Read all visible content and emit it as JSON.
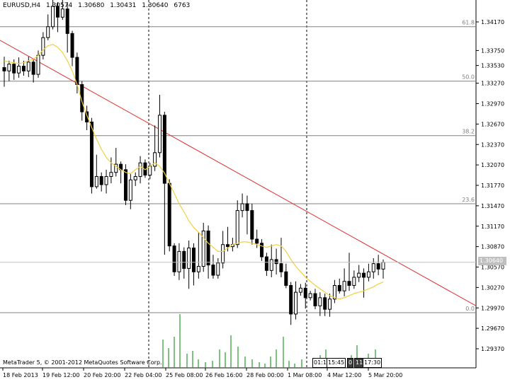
{
  "header": {
    "symbol": "EURUSD,H4",
    "open": "1.30574",
    "high": "1.30680",
    "low": "1.30431",
    "close": "1.30640",
    "volume": "6763"
  },
  "copyright": "MetaTrader 5, © 2001-2012 MetaQuotes Software Corp.",
  "current_price": "1.30640",
  "time_badges": [
    "01:1",
    "15:45",
    "0",
    "11:",
    "17:30"
  ],
  "colors": {
    "bull": "#ffffff",
    "bear": "#000000",
    "ma": "#f0d040",
    "trendline": "#e03030",
    "volume": "#2a9a2a",
    "fib": "#808080",
    "separator": "#000000"
  },
  "chart_data": {
    "type": "candlestick",
    "y_ticks": [
      "1.34170",
      "1.33750",
      "1.33530",
      "1.33270",
      "1.32970",
      "1.32670",
      "1.32370",
      "1.32070",
      "1.31770",
      "1.31470",
      "1.31170",
      "1.30870",
      "1.30570",
      "1.30270",
      "1.29970",
      "1.29670",
      "1.29370"
    ],
    "y_tick_values": [
      1.3417,
      1.3375,
      1.3353,
      1.3327,
      1.3297,
      1.3267,
      1.3237,
      1.3207,
      1.3177,
      1.3147,
      1.3117,
      1.3087,
      1.3057,
      1.3027,
      1.2997,
      1.2967,
      1.2937
    ],
    "x_ticks": [
      "18 Feb 2013",
      "19 Feb 12:00",
      "20 Feb 20:00",
      "22 Feb 04:00",
      "25 Feb 08:00",
      "26 Feb 16:00",
      "28 Feb 00:00",
      "1 Mar 08:00",
      "4 Mar 12:00",
      "5 Mar 20:00"
    ],
    "fib_levels": [
      {
        "label": "61.8",
        "price": 1.341
      },
      {
        "label": "50.0",
        "price": 1.333
      },
      {
        "label": "38.2",
        "price": 1.325
      },
      {
        "label": "23.6",
        "price": 1.315
      },
      {
        "label": "0.0",
        "price": 1.299
      }
    ],
    "trendline": {
      "from_price": 1.339,
      "to_price": 1.3
    },
    "session_separators": [
      "22 Feb 04:00",
      "1 Mar 08:00"
    ],
    "candles": [
      [
        1.335,
        1.3345,
        1.3366,
        1.3322
      ],
      [
        1.3345,
        1.3355,
        1.336,
        1.333
      ],
      [
        1.3355,
        1.3342,
        1.3362,
        1.3332
      ],
      [
        1.3342,
        1.3352,
        1.3365,
        1.3335
      ],
      [
        1.3352,
        1.3345,
        1.336,
        1.3338
      ],
      [
        1.3345,
        1.3358,
        1.3366,
        1.3336
      ],
      [
        1.3358,
        1.334,
        1.3362,
        1.3328
      ],
      [
        1.334,
        1.3368,
        1.3375,
        1.3335
      ],
      [
        1.3368,
        1.3394,
        1.3402,
        1.3362
      ],
      [
        1.3394,
        1.341,
        1.3428,
        1.339
      ],
      [
        1.341,
        1.344,
        1.3452,
        1.3406
      ],
      [
        1.344,
        1.3424,
        1.3446,
        1.3402
      ],
      [
        1.3424,
        1.3436,
        1.3452,
        1.342
      ],
      [
        1.3436,
        1.34,
        1.3446,
        1.3372
      ],
      [
        1.34,
        1.3365,
        1.3404,
        1.3352
      ],
      [
        1.3365,
        1.3325,
        1.3372,
        1.3312
      ],
      [
        1.3325,
        1.3285,
        1.333,
        1.3272
      ],
      [
        1.3285,
        1.327,
        1.3294,
        1.3258
      ],
      [
        1.327,
        1.3175,
        1.3276,
        1.3165
      ],
      [
        1.3175,
        1.319,
        1.3222,
        1.3172
      ],
      [
        1.319,
        1.3178,
        1.3196,
        1.3168
      ],
      [
        1.3178,
        1.319,
        1.32,
        1.3165
      ],
      [
        1.319,
        1.3196,
        1.3218,
        1.318
      ],
      [
        1.3196,
        1.3208,
        1.3232,
        1.319
      ],
      [
        1.3208,
        1.32,
        1.3212,
        1.318
      ],
      [
        1.32,
        1.3155,
        1.3208,
        1.3148
      ],
      [
        1.3155,
        1.3185,
        1.3195,
        1.3142
      ],
      [
        1.3185,
        1.319,
        1.3196,
        1.3176
      ],
      [
        1.319,
        1.321,
        1.322,
        1.318
      ],
      [
        1.321,
        1.3192,
        1.3215,
        1.3188
      ],
      [
        1.3192,
        1.3205,
        1.321,
        1.3186
      ],
      [
        1.3205,
        1.3225,
        1.3265,
        1.3198
      ],
      [
        1.3225,
        1.328,
        1.331,
        1.3218
      ],
      [
        1.328,
        1.318,
        1.3285,
        1.3075
      ],
      [
        1.318,
        1.3088,
        1.3186,
        1.308
      ],
      [
        1.3088,
        1.305,
        1.3092,
        1.3044
      ],
      [
        1.305,
        1.308,
        1.3092,
        1.3038
      ],
      [
        1.308,
        1.3055,
        1.3086,
        1.304
      ],
      [
        1.3055,
        1.3085,
        1.3096,
        1.3025
      ],
      [
        1.3085,
        1.305,
        1.3092,
        1.303
      ],
      [
        1.305,
        1.3058,
        1.3108,
        1.304
      ],
      [
        1.3058,
        1.311,
        1.3122,
        1.305
      ],
      [
        1.311,
        1.306,
        1.3118,
        1.304
      ],
      [
        1.306,
        1.3045,
        1.3075,
        1.304
      ],
      [
        1.3045,
        1.3063,
        1.307,
        1.304
      ],
      [
        1.3063,
        1.309,
        1.311,
        1.3055
      ],
      [
        1.309,
        1.3087,
        1.3116,
        1.308
      ],
      [
        1.3087,
        1.309,
        1.31,
        1.308
      ],
      [
        1.309,
        1.314,
        1.3155,
        1.3085
      ],
      [
        1.314,
        1.315,
        1.3165,
        1.313
      ],
      [
        1.315,
        1.314,
        1.3162,
        1.3105
      ],
      [
        1.314,
        1.3098,
        1.315,
        1.309
      ],
      [
        1.3098,
        1.3092,
        1.3112,
        1.3085
      ],
      [
        1.3092,
        1.3072,
        1.3098,
        1.3066
      ],
      [
        1.3072,
        1.3052,
        1.3078,
        1.3044
      ],
      [
        1.3052,
        1.3068,
        1.309,
        1.3042
      ],
      [
        1.3068,
        1.3062,
        1.3084,
        1.3046
      ],
      [
        1.3062,
        1.305,
        1.31,
        1.3042
      ],
      [
        1.305,
        1.303,
        1.3062,
        1.3026
      ],
      [
        1.303,
        1.2988,
        1.3035,
        1.2972
      ],
      [
        1.2988,
        1.302,
        1.3036,
        1.298
      ],
      [
        1.302,
        1.3026,
        1.3032,
        1.3015
      ],
      [
        1.3026,
        1.3012,
        1.3034,
        1.2996
      ],
      [
        1.3012,
        1.3018,
        1.3022,
        1.3008
      ],
      [
        1.3018,
        1.3,
        1.3025,
        1.2995
      ],
      [
        1.3,
        1.3012,
        1.302,
        1.2985
      ],
      [
        1.3012,
        1.2995,
        1.3018,
        1.2985
      ],
      [
        1.2995,
        1.301,
        1.3018,
        1.2984
      ],
      [
        1.301,
        1.303,
        1.3038,
        1.3004
      ],
      [
        1.303,
        1.3022,
        1.304,
        1.3018
      ],
      [
        1.3022,
        1.3036,
        1.3055,
        1.3014
      ],
      [
        1.3036,
        1.303,
        1.3078,
        1.3022
      ],
      [
        1.303,
        1.3042,
        1.3052,
        1.3025
      ],
      [
        1.3042,
        1.3048,
        1.306,
        1.3035
      ],
      [
        1.3048,
        1.3042,
        1.3055,
        1.3012
      ],
      [
        1.3042,
        1.305,
        1.3062,
        1.3036
      ],
      [
        1.305,
        1.3062,
        1.307,
        1.304
      ],
      [
        1.3062,
        1.3054,
        1.3075,
        1.3045
      ],
      [
        1.3054,
        1.3064,
        1.3068,
        1.304
      ]
    ],
    "ma": [
      1.336,
      1.3358,
      1.3357,
      1.3356,
      1.3357,
      1.336,
      1.3362,
      1.3368,
      1.3376,
      1.3382,
      1.3384,
      1.338,
      1.3372,
      1.336,
      1.3345,
      1.3325,
      1.33,
      1.328,
      1.3262,
      1.3245,
      1.323,
      1.3218,
      1.321,
      1.3205,
      1.32,
      1.3196,
      1.3194,
      1.32,
      1.3205,
      1.32,
      1.3205,
      1.321,
      1.3205,
      1.3195,
      1.318,
      1.3165,
      1.315,
      1.3138,
      1.3125,
      1.3115,
      1.3108,
      1.31,
      1.3092,
      1.3086,
      1.308,
      1.308,
      1.3085,
      1.309,
      1.3092,
      1.3094,
      1.3094,
      1.3092,
      1.309,
      1.3088,
      1.3086,
      1.3088,
      1.309,
      1.3088,
      1.308,
      1.3068,
      1.3058,
      1.305,
      1.3042,
      1.3036,
      1.303,
      1.3025,
      1.302,
      1.3015,
      1.3012,
      1.301,
      1.3012,
      1.3015,
      1.3018,
      1.302,
      1.3022,
      1.3025,
      1.3028,
      1.3032,
      1.3035
    ],
    "volume_bars_x": [
      230,
      238,
      246,
      254,
      264,
      272,
      280,
      290,
      300,
      310,
      318,
      326,
      336,
      346,
      356,
      366,
      374,
      382,
      390,
      400,
      408,
      416,
      426,
      452,
      460,
      468,
      476,
      486,
      496,
      504,
      512,
      520,
      530
    ],
    "volume_values": [
      40,
      28,
      44,
      76,
      20,
      24,
      12,
      8,
      10,
      26,
      22,
      46,
      30,
      16,
      12,
      8,
      6,
      16,
      26,
      44,
      10,
      6,
      12,
      18,
      26,
      14,
      8,
      14,
      18,
      32,
      14,
      20,
      26
    ]
  }
}
